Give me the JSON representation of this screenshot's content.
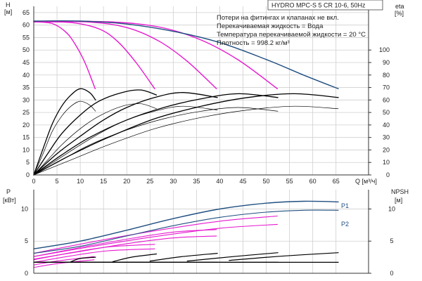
{
  "chart_data": {
    "type": "line",
    "title": "HYDRO MPC-S 5 CR 10-6, 50Hz",
    "notes": [
      "Потери на фитингах и клапанах не вкл.",
      "Перекачиваемая жидкость = Вода",
      "Температура перекачиваемой жидкости = 20 °C",
      "Плотность = 998.2 кг/м³"
    ],
    "x_label": "Q [м³/ч]",
    "x_ticks": [
      "0",
      "5",
      "10",
      "15",
      "20",
      "25",
      "30",
      "35",
      "40",
      "45",
      "50",
      "55",
      "60",
      "65"
    ],
    "xlim": [
      0,
      72
    ],
    "colors": {
      "head": "#e619d0",
      "head_max": "#1f4e80",
      "eta": "#000000",
      "power": "#e619d0",
      "power_max": "#1f4e80",
      "npsh": "#000000",
      "grid": "#cfcfcf"
    },
    "top": {
      "y_label_left_1": "H",
      "y_label_left_2": "[м]",
      "y_ticks_left": [
        "0",
        "5",
        "10",
        "15",
        "20",
        "25",
        "30",
        "35",
        "40",
        "45",
        "50",
        "55",
        "60",
        "65"
      ],
      "ylim_left": [
        0,
        67.5
      ],
      "y_label_right_1": "eta",
      "y_label_right_2": "[%]",
      "y_ticks_right": [
        "0",
        "10",
        "20",
        "30",
        "40",
        "50",
        "60",
        "70",
        "80",
        "90",
        "100"
      ],
      "ylim_right": [
        0,
        135
      ],
      "head_max": {
        "x": [
          0,
          10,
          20,
          30,
          40,
          50,
          58,
          65.5
        ],
        "y": [
          61.6,
          61.6,
          60.4,
          57.5,
          53,
          46.2,
          40,
          34.5
        ]
      },
      "head_series": [
        {
          "x": [
            0,
            4,
            7,
            9,
            11,
            13.2
          ],
          "y": [
            61.3,
            60.6,
            57,
            52,
            45,
            34.5
          ]
        },
        {
          "x": [
            0,
            8,
            14,
            18,
            22,
            26
          ],
          "y": [
            61.3,
            61,
            58.5,
            53.5,
            45,
            34.5
          ]
        },
        {
          "x": [
            0,
            12,
            20,
            27,
            33,
            39.3
          ],
          "y": [
            61.4,
            61.2,
            59,
            53.5,
            45.5,
            34.5
          ]
        },
        {
          "x": [
            0,
            16,
            27,
            36,
            44,
            52.4
          ],
          "y": [
            61.5,
            61.3,
            59.2,
            54,
            46,
            34.5
          ]
        }
      ],
      "eta_series": [
        {
          "x": [
            0,
            2,
            4,
            6,
            8,
            10,
            12,
            13.3
          ],
          "y": [
            0,
            17,
            35,
            47,
            55,
            59,
            56,
            51
          ]
        },
        {
          "x": [
            0,
            3,
            6,
            10,
            14,
            19,
            23,
            26.4
          ],
          "y": [
            0,
            12,
            24,
            37,
            47,
            55,
            57,
            53
          ]
        },
        {
          "x": [
            0,
            5,
            10,
            15,
            20,
            26,
            32,
            39.5
          ],
          "y": [
            0,
            12,
            24,
            35,
            44,
            51,
            55,
            52
          ]
        },
        {
          "x": [
            0,
            6,
            12,
            20,
            28,
            36,
            44,
            52.5
          ],
          "y": [
            0,
            12,
            24,
            36,
            45,
            51,
            54,
            51
          ]
        },
        {
          "x": [
            0,
            8,
            16,
            26,
            36,
            46,
            56,
            65.5
          ],
          "y": [
            0,
            12,
            24,
            37,
            46,
            52,
            55,
            53
          ]
        },
        {
          "x": [
            0,
            2,
            4,
            6,
            8,
            10,
            12,
            13.3
          ],
          "y": [
            0,
            21,
            41,
            55,
            64,
            69,
            66,
            60
          ]
        },
        {
          "x": [
            0,
            3,
            6,
            10,
            14,
            19,
            23,
            26.4
          ],
          "y": [
            0,
            17,
            33,
            48,
            59,
            66,
            68,
            64
          ]
        },
        {
          "x": [
            0,
            5,
            10,
            15,
            20,
            26,
            32,
            39.5
          ],
          "y": [
            0,
            17,
            31,
            44,
            54,
            62,
            66,
            62
          ]
        },
        {
          "x": [
            0,
            6,
            12,
            20,
            28,
            36,
            44,
            52.5
          ],
          "y": [
            0,
            16,
            30,
            44,
            54,
            61,
            65,
            62
          ]
        },
        {
          "x": [
            0,
            8,
            16,
            26,
            36,
            46,
            56,
            65.5
          ],
          "y": [
            0,
            16,
            30,
            45,
            55,
            62,
            65,
            62
          ]
        }
      ]
    },
    "bottom": {
      "y_label_left_1": "P",
      "y_label_left_2": "[кВт]",
      "y_ticks_left": [
        "0",
        "5",
        "10"
      ],
      "ylim_left": [
        0,
        13
      ],
      "y_label_right_1": "NPSH",
      "y_label_right_2": "[м]",
      "y_ticks_right": [
        "0",
        "5",
        "10"
      ],
      "ylim_right": [
        0,
        13
      ],
      "power_max_p1": {
        "label": "P1",
        "x": [
          0,
          10,
          20,
          30,
          40,
          50,
          58,
          65.5
        ],
        "y": [
          3.8,
          5,
          6.7,
          8.5,
          10,
          10.9,
          11.2,
          11.1
        ]
      },
      "power_max_p2": {
        "label": "P2",
        "x": [
          0,
          10,
          20,
          30,
          40,
          50,
          58,
          65.5
        ],
        "y": [
          3.1,
          4.2,
          5.8,
          7.4,
          8.7,
          9.5,
          9.8,
          9.8
        ]
      },
      "power_series": [
        {
          "x": [
            0,
            5,
            13
          ],
          "y": [
            1.3,
            1.9,
            2.6
          ]
        },
        {
          "x": [
            0,
            5,
            13
          ],
          "y": [
            0.9,
            1.5,
            2.1
          ]
        },
        {
          "x": [
            0,
            8,
            16,
            26
          ],
          "y": [
            2.1,
            3.2,
            4.1,
            4.5
          ]
        },
        {
          "x": [
            0,
            8,
            16,
            26
          ],
          "y": [
            1.7,
            2.7,
            3.5,
            3.8
          ]
        },
        {
          "x": [
            0,
            10,
            20,
            30,
            39.3
          ],
          "y": [
            2.6,
            4,
            5.3,
            6.4,
            6.8
          ]
        },
        {
          "x": [
            0,
            10,
            20,
            30,
            39.3
          ],
          "y": [
            2.2,
            3.4,
            4.6,
            5.5,
            5.8
          ]
        },
        {
          "x": [
            0,
            12,
            26,
            40,
            52.4
          ],
          "y": [
            3.1,
            4.8,
            6.6,
            8.1,
            8.9
          ]
        },
        {
          "x": [
            0,
            12,
            26,
            40,
            52.4
          ],
          "y": [
            2.6,
            4.1,
            5.7,
            7,
            7.6
          ]
        }
      ],
      "npsh_series": [
        {
          "x": [
            0,
            13.3
          ],
          "y": [
            1.7,
            1.7
          ]
        },
        {
          "x": [
            8,
            10,
            13.3
          ],
          "y": [
            1.8,
            2.3,
            2.5
          ]
        },
        {
          "x": [
            0,
            26.4
          ],
          "y": [
            1.7,
            1.7
          ]
        },
        {
          "x": [
            17,
            21,
            26.4
          ],
          "y": [
            1.8,
            2.5,
            3
          ]
        },
        {
          "x": [
            0,
            39.5
          ],
          "y": [
            1.7,
            1.7
          ]
        },
        {
          "x": [
            25,
            32,
            39.5
          ],
          "y": [
            1.9,
            2.6,
            3.1
          ]
        },
        {
          "x": [
            0,
            52.5
          ],
          "y": [
            1.7,
            1.7
          ]
        },
        {
          "x": [
            33,
            43,
            52.5
          ],
          "y": [
            1.9,
            2.6,
            3.2
          ]
        },
        {
          "x": [
            0,
            65.5
          ],
          "y": [
            1.7,
            1.7
          ]
        },
        {
          "x": [
            42,
            54,
            65.5
          ],
          "y": [
            2,
            2.7,
            3.2
          ]
        }
      ]
    }
  }
}
